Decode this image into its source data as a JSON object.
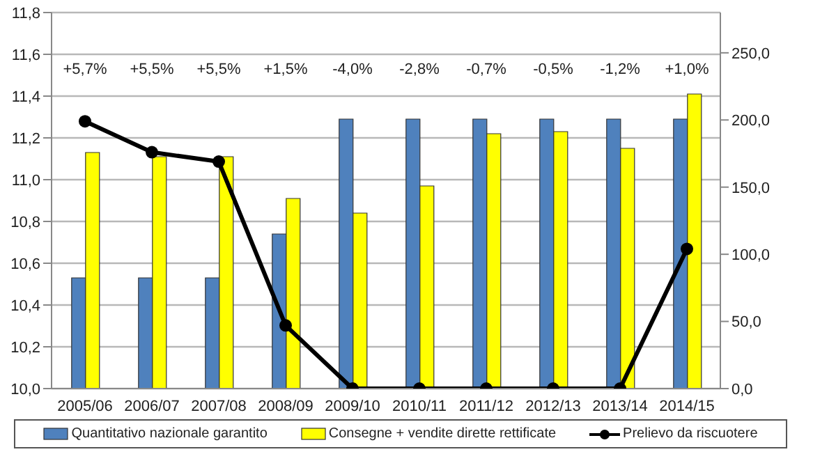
{
  "chart_data": {
    "type": "bar",
    "categories": [
      "2005/06",
      "2006/07",
      "2007/08",
      "2008/09",
      "2009/10",
      "2010/11",
      "2011/12",
      "2012/13",
      "2013/14",
      "2014/15"
    ],
    "series": [
      {
        "name": "Quantitativo nazionale garantito",
        "color": "#4f81bd",
        "values": [
          10.53,
          10.53,
          10.53,
          10.74,
          11.29,
          11.29,
          11.29,
          11.29,
          11.29,
          11.29
        ]
      },
      {
        "name": "Consegne + vendite dirette rettificate",
        "color": "#ffff00",
        "values": [
          11.13,
          11.11,
          11.11,
          10.91,
          10.84,
          10.97,
          11.22,
          11.23,
          11.15,
          11.41
        ]
      },
      {
        "name": "Prelievo da riscuotere",
        "type": "line",
        "axis": "y2",
        "color": "#000000",
        "marker": "circle",
        "values": [
          199,
          176,
          169,
          47,
          0,
          0,
          0,
          0,
          0,
          104
        ]
      }
    ],
    "ylim": [
      10.0,
      11.8
    ],
    "yticks": [
      {
        "value": 10.0,
        "label": "10,0"
      },
      {
        "value": 10.2,
        "label": "10,2"
      },
      {
        "value": 10.4,
        "label": "10,4"
      },
      {
        "value": 10.6,
        "label": "10,6"
      },
      {
        "value": 10.8,
        "label": "10,8"
      },
      {
        "value": 11.0,
        "label": "11,0"
      },
      {
        "value": 11.2,
        "label": "11,2"
      },
      {
        "value": 11.4,
        "label": "11,4"
      },
      {
        "value": 11.6,
        "label": "11,6"
      },
      {
        "value": 11.8,
        "label": "11,8"
      }
    ],
    "y2lim": [
      0,
      280
    ],
    "y2ticks": [
      {
        "value": 0,
        "label": "0,0"
      },
      {
        "value": 50,
        "label": "50,0"
      },
      {
        "value": 100,
        "label": "100,0"
      },
      {
        "value": 150,
        "label": "150,0"
      },
      {
        "value": 200,
        "label": "200,0"
      },
      {
        "value": 250,
        "label": "250,0"
      }
    ],
    "annotations": [
      "+5,7%",
      "+5,5%",
      "+5,5%",
      "+1,5%",
      "-4,0%",
      "-2,8%",
      "-0,7%",
      "-0,5%",
      "-1,2%",
      "+1,0%"
    ],
    "grid": "y",
    "legend": "bottom"
  }
}
